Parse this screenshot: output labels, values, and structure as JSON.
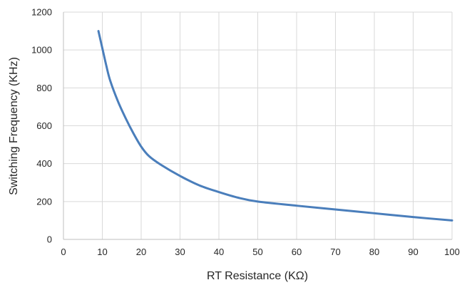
{
  "chart_data": {
    "type": "line",
    "title": "",
    "xlabel": "RT Resistance (KΩ)",
    "ylabel": "Switching Frequency (KHz)",
    "xlim": [
      0,
      100
    ],
    "ylim": [
      0,
      1200
    ],
    "x_ticks": [
      0,
      10,
      20,
      30,
      40,
      50,
      60,
      70,
      80,
      90,
      100
    ],
    "y_ticks": [
      0,
      200,
      400,
      600,
      800,
      1000,
      1200
    ],
    "grid": true,
    "legend": "none",
    "series": [
      {
        "color": "#4a7ebb",
        "x": [
          9,
          10,
          11,
          12,
          14,
          16,
          18,
          20,
          22,
          25,
          30,
          35,
          40,
          45,
          50,
          60,
          70,
          80,
          90,
          100
        ],
        "y": [
          1100,
          1010,
          920,
          840,
          730,
          640,
          560,
          490,
          440,
          395,
          335,
          285,
          250,
          220,
          200,
          178,
          158,
          138,
          118,
          100
        ]
      }
    ]
  }
}
